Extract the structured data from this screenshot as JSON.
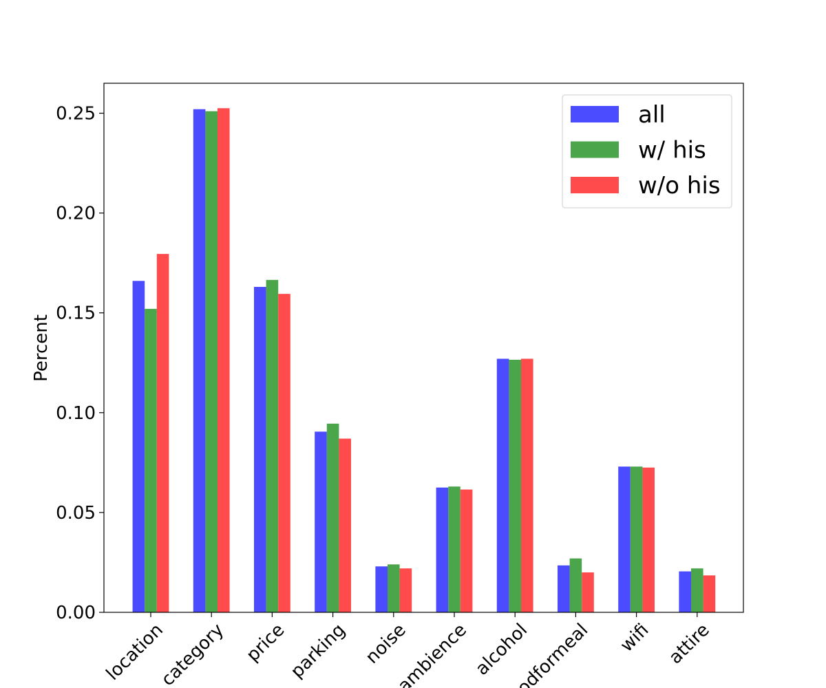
{
  "chart_data": {
    "type": "bar",
    "title": "",
    "xlabel": "",
    "ylabel": "Percent",
    "ylim": [
      0,
      0.265
    ],
    "yticks": [
      "0.00",
      "0.05",
      "0.10",
      "0.15",
      "0.20",
      "0.25"
    ],
    "categories": [
      "location",
      "category",
      "price",
      "parking",
      "noise",
      "ambience",
      "alcohol",
      "goodformeal",
      "wifi",
      "attire"
    ],
    "series": [
      {
        "name": "all",
        "color": "#4b4bff",
        "values": [
          0.166,
          0.252,
          0.163,
          0.0905,
          0.023,
          0.0625,
          0.127,
          0.0235,
          0.073,
          0.0205
        ]
      },
      {
        "name": "w/ his",
        "color": "#4ba64b",
        "values": [
          0.152,
          0.251,
          0.1665,
          0.0945,
          0.024,
          0.063,
          0.1265,
          0.027,
          0.073,
          0.022
        ]
      },
      {
        "name": "w/o his",
        "color": "#ff4b4b",
        "values": [
          0.1795,
          0.2525,
          0.1595,
          0.087,
          0.022,
          0.0615,
          0.127,
          0.02,
          0.0725,
          0.0185
        ]
      }
    ],
    "grid": false,
    "legend_position": "top-right"
  }
}
